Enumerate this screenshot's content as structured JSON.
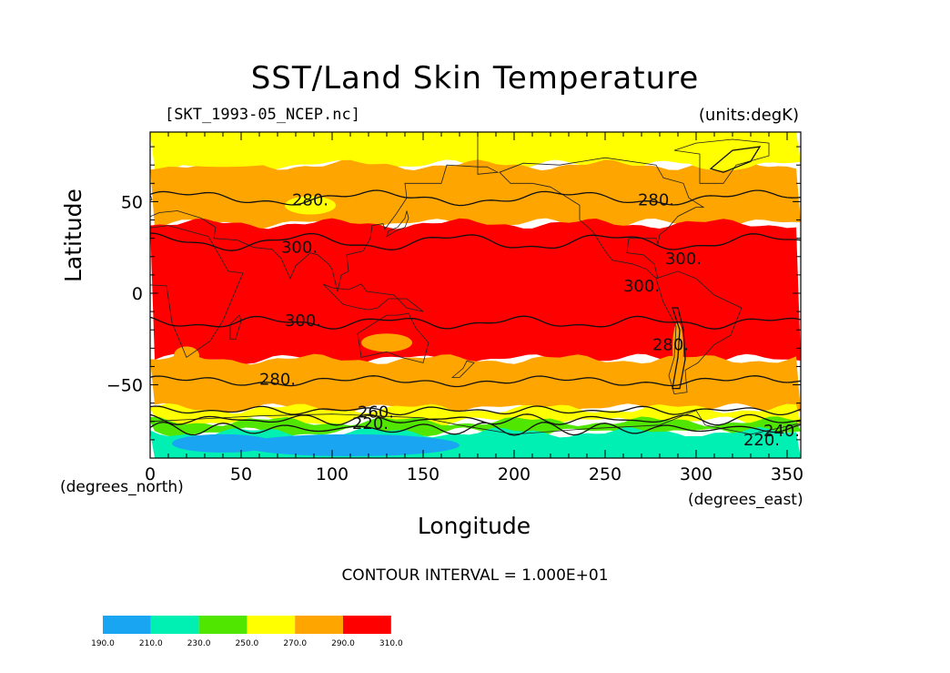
{
  "chart_data": {
    "type": "heatmap",
    "title": "SST/Land Skin Temperature",
    "source_file": "[SKT_1993-05_NCEP.nc]",
    "units_label": "(units:degK)",
    "xlabel": "Longitude",
    "ylabel": "Latitude",
    "x_unit_label": "(degrees_east)",
    "y_unit_label": "(degrees_north)",
    "xlim": [
      0,
      357.5
    ],
    "ylim": [
      -90,
      88
    ],
    "x_ticks": [
      0,
      50,
      100,
      150,
      200,
      250,
      300,
      350
    ],
    "x_tick_labels": [
      "0",
      "50",
      "100",
      "150",
      "200",
      "250",
      "300",
      "350"
    ],
    "y_ticks": [
      50,
      0,
      -50
    ],
    "y_tick_labels": [
      "50",
      "0",
      "−50"
    ],
    "contour_interval_text": "CONTOUR INTERVAL = 1.000E+01",
    "contour_interval": 10,
    "levels": [
      190,
      210,
      230,
      250,
      270,
      290,
      310
    ],
    "level_labels": [
      "190.0",
      "210.0",
      "230.0",
      "250.0",
      "270.0",
      "290.0",
      "310.0"
    ],
    "fill_colors": [
      "#19a5f2",
      "#00f0b4",
      "#50e600",
      "#ffff00",
      "#ffa500",
      "#ff0000"
    ],
    "zonal_bands": [
      {
        "lat_min": 70,
        "lat_max": 88,
        "class": 3
      },
      {
        "lat_min": 38,
        "lat_max": 70,
        "class": 4
      },
      {
        "lat_min": -36,
        "lat_max": 38,
        "class": 5
      },
      {
        "lat_min": -63,
        "lat_max": -36,
        "class": 4
      },
      {
        "lat_min": -70,
        "lat_max": -63,
        "class": 3
      },
      {
        "lat_min": -76,
        "lat_max": -70,
        "class": 2
      },
      {
        "lat_min": -90,
        "lat_max": -76,
        "class": 1
      }
    ],
    "contour_labels": [
      {
        "text": "280.",
        "lon": 88,
        "lat": 51
      },
      {
        "text": "300.",
        "lon": 82,
        "lat": 25
      },
      {
        "text": "280.",
        "lon": 278,
        "lat": 51
      },
      {
        "text": "300.",
        "lon": 293,
        "lat": 19
      },
      {
        "text": "300.",
        "lon": 270,
        "lat": 4
      },
      {
        "text": "300.",
        "lon": 84,
        "lat": -15
      },
      {
        "text": "280.",
        "lon": 70,
        "lat": -47
      },
      {
        "text": "280.",
        "lon": 286,
        "lat": -28
      },
      {
        "text": "260.",
        "lon": 124,
        "lat": -65
      },
      {
        "text": "220.",
        "lon": 121,
        "lat": -71
      },
      {
        "text": "220.",
        "lon": 336,
        "lat": -80
      },
      {
        "text": "240.",
        "lon": 347,
        "lat": -75
      }
    ]
  }
}
